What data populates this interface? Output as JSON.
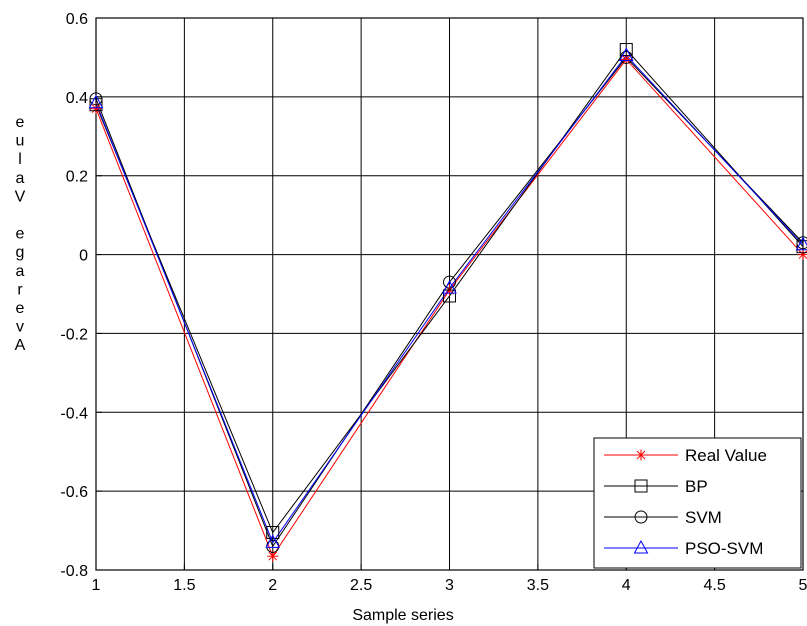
{
  "chart_data": {
    "type": "line",
    "title": "",
    "xlabel": "Sample series",
    "ylabel": "eulaV egarevA",
    "xlim": [
      1,
      5
    ],
    "ylim": [
      -0.8,
      0.6
    ],
    "xticks": [
      "1",
      "1.5",
      "2",
      "2.5",
      "3",
      "3.5",
      "4",
      "4.5",
      "5"
    ],
    "yticks": [
      "0.6",
      "0.4",
      "0.2",
      "0",
      "-0.2",
      "-0.4",
      "-0.6",
      "-0.8"
    ],
    "grid": true,
    "legend_position": "bottom-right",
    "x": [
      1,
      2,
      3,
      4,
      5
    ],
    "series": [
      {
        "name": "Real Value",
        "marker": "star",
        "color": "#ff0000",
        "values": [
          0.37,
          -0.765,
          -0.09,
          0.495,
          0.0
        ]
      },
      {
        "name": "BP",
        "marker": "square",
        "color": "#000000",
        "values": [
          0.38,
          -0.705,
          -0.105,
          0.52,
          0.02
        ]
      },
      {
        "name": "SVM",
        "marker": "circle",
        "color": "#000000",
        "values": [
          0.395,
          -0.74,
          -0.07,
          0.5,
          0.03
        ]
      },
      {
        "name": "PSO-SVM",
        "marker": "triangle",
        "color": "#0000ff",
        "values": [
          0.385,
          -0.73,
          -0.085,
          0.505,
          0.025
        ]
      }
    ]
  }
}
